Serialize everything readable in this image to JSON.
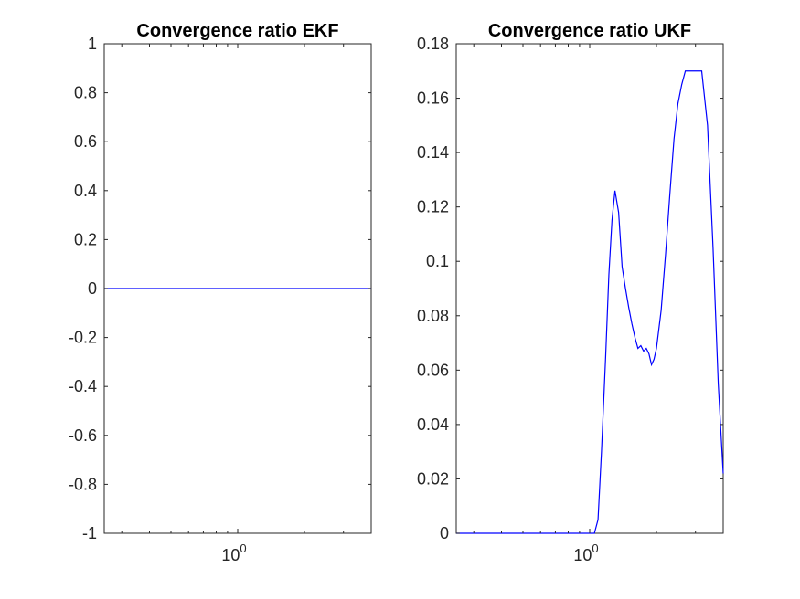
{
  "chart_data": [
    {
      "type": "line",
      "title": "Convergence ratio EKF",
      "xlabel": "",
      "ylabel": "",
      "xscale": "log",
      "ylim": [
        -1,
        1
      ],
      "yticks": [
        -1,
        -0.8,
        -0.6,
        -0.4,
        -0.2,
        0,
        0.2,
        0.4,
        0.6,
        0.8,
        1
      ],
      "ytick_labels": [
        "-1",
        "-0.8",
        "-0.6",
        "-0.4",
        "-0.2",
        "0",
        "0.2",
        "0.4",
        "0.6",
        "0.8",
        "1"
      ],
      "xtick_base": "10",
      "xtick_exp": "0",
      "xlim": [
        0.25,
        4
      ],
      "grid": false,
      "series": [
        {
          "color": "#0000ff",
          "x": [
            0.25,
            4
          ],
          "y": [
            0,
            0
          ]
        }
      ]
    },
    {
      "type": "line",
      "title": "Convergence ratio UKF",
      "xlabel": "",
      "ylabel": "",
      "xscale": "log",
      "ylim": [
        0,
        0.18
      ],
      "yticks": [
        0,
        0.02,
        0.04,
        0.06,
        0.08,
        0.1,
        0.12,
        0.14,
        0.16,
        0.18
      ],
      "ytick_labels": [
        "0",
        "0.02",
        "0.04",
        "0.06",
        "0.08",
        "0.1",
        "0.12",
        "0.14",
        "0.16",
        "0.18"
      ],
      "xtick_base": "10",
      "xtick_exp": "0",
      "xlim": [
        0.25,
        4
      ],
      "grid": false,
      "series": [
        {
          "color": "#0000ff",
          "x": [
            0.25,
            1.0,
            1.05,
            1.09,
            1.13,
            1.18,
            1.22,
            1.26,
            1.3,
            1.35,
            1.4,
            1.45,
            1.5,
            1.55,
            1.6,
            1.65,
            1.7,
            1.75,
            1.8,
            1.85,
            1.9,
            1.95,
            2.0,
            2.1,
            2.2,
            2.3,
            2.4,
            2.5,
            2.6,
            2.7,
            2.8,
            3.0,
            3.2,
            3.4,
            3.6,
            3.8,
            4.0
          ],
          "y": [
            0,
            0,
            0,
            0.005,
            0.03,
            0.065,
            0.095,
            0.115,
            0.126,
            0.118,
            0.098,
            0.09,
            0.083,
            0.077,
            0.072,
            0.068,
            0.069,
            0.067,
            0.068,
            0.066,
            0.062,
            0.064,
            0.068,
            0.082,
            0.103,
            0.125,
            0.145,
            0.158,
            0.165,
            0.17,
            0.17,
            0.17,
            0.17,
            0.15,
            0.105,
            0.055,
            0.022
          ]
        }
      ]
    }
  ]
}
